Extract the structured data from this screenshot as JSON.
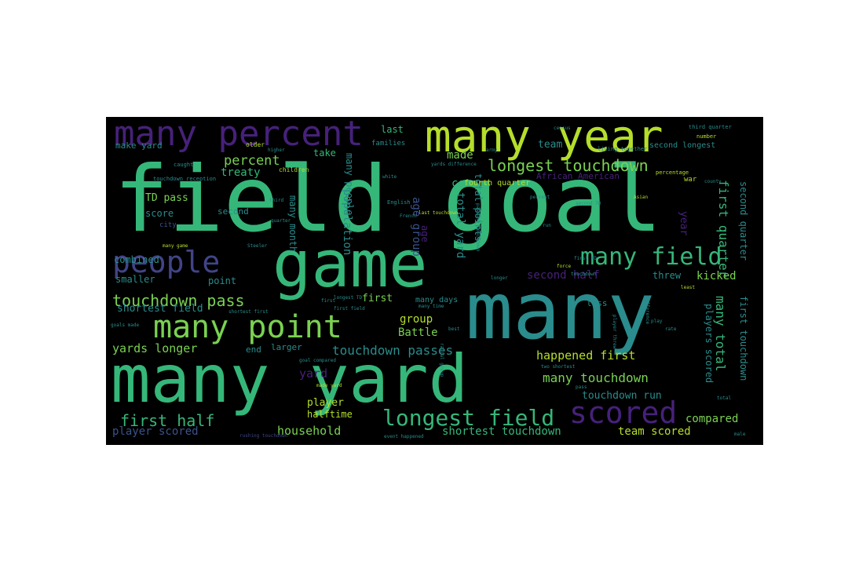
{
  "palette": {
    "purple": "#46217a",
    "indigo": "#414487",
    "blue": "#3b528b",
    "teal": "#2a8c8c",
    "green": "#35b779",
    "lime": "#7ad151",
    "yellow": "#b5de2b",
    "background": "#000000",
    "page": "#ffffff"
  },
  "words": [
    {
      "text": "field goal"
    },
    {
      "text": "many"
    },
    {
      "text": "many yard"
    },
    {
      "text": "game"
    },
    {
      "text": "many year"
    },
    {
      "text": "many percent"
    },
    {
      "text": "many point"
    },
    {
      "text": "people"
    },
    {
      "text": "scored"
    },
    {
      "text": "many field"
    },
    {
      "text": "longest field"
    },
    {
      "text": "longest touchdown"
    },
    {
      "text": "touchdown pass"
    },
    {
      "text": "first half"
    },
    {
      "text": "touchdown passes"
    },
    {
      "text": "many touchdown"
    },
    {
      "text": "happened first"
    },
    {
      "text": "yards longer"
    },
    {
      "text": "percent"
    },
    {
      "text": "household"
    },
    {
      "text": "player scored"
    },
    {
      "text": "shortest touchdown"
    },
    {
      "text": "team scored"
    },
    {
      "text": "compared"
    },
    {
      "text": "touchdown run"
    },
    {
      "text": "second half"
    },
    {
      "text": "kicked"
    },
    {
      "text": "first quarter"
    },
    {
      "text": "second quarter"
    },
    {
      "text": "first touchdown"
    },
    {
      "text": "many total"
    },
    {
      "text": "players scored"
    },
    {
      "text": "population"
    },
    {
      "text": "census"
    },
    {
      "text": "age group"
    },
    {
      "text": "total yard"
    },
    {
      "text": "total points"
    },
    {
      "text": "many month"
    },
    {
      "text": "many people"
    },
    {
      "text": "treaty"
    },
    {
      "text": "made"
    },
    {
      "text": "take"
    },
    {
      "text": "team"
    },
    {
      "text": "last"
    },
    {
      "text": "group"
    },
    {
      "text": "Battle"
    },
    {
      "text": "yard"
    },
    {
      "text": "player"
    },
    {
      "text": "halftime"
    },
    {
      "text": "first"
    },
    {
      "text": "shortest field"
    },
    {
      "text": "score"
    },
    {
      "text": "combined"
    },
    {
      "text": "smaller"
    },
    {
      "text": "point"
    },
    {
      "text": "TD pass"
    },
    {
      "text": "make yard"
    },
    {
      "text": "second"
    },
    {
      "text": "end"
    },
    {
      "text": "larger"
    },
    {
      "text": "threw"
    },
    {
      "text": "less"
    },
    {
      "text": "year"
    },
    {
      "text": "age"
    },
    {
      "text": "many days"
    },
    {
      "text": "African American"
    },
    {
      "text": "war"
    },
    {
      "text": "fourth quarter"
    },
    {
      "text": "second longest"
    },
    {
      "text": "third quarter"
    },
    {
      "text": "city"
    },
    {
      "text": "families"
    },
    {
      "text": "older"
    },
    {
      "text": "children"
    },
    {
      "text": "caught"
    },
    {
      "text": "English"
    },
    {
      "text": "number"
    },
    {
      "text": "percentage"
    },
    {
      "text": "living together"
    },
    {
      "text": "county"
    },
    {
      "text": "touchdown reception"
    },
    {
      "text": "goals made"
    },
    {
      "text": "many game"
    },
    {
      "text": "made yard"
    },
    {
      "text": "goal compared"
    },
    {
      "text": "event happened"
    },
    {
      "text": "rushing touchdown"
    },
    {
      "text": "Steeler"
    },
    {
      "text": "first field"
    },
    {
      "text": "shortest first"
    },
    {
      "text": "longest TD"
    },
    {
      "text": "many time"
    },
    {
      "text": "last touchdown"
    },
    {
      "text": "passing touchdown"
    },
    {
      "text": "yards difference"
    },
    {
      "text": "racial group"
    },
    {
      "text": "force"
    },
    {
      "text": "least"
    },
    {
      "text": "longer"
    },
    {
      "text": "play"
    },
    {
      "text": "player threw"
    },
    {
      "text": "difference"
    },
    {
      "text": "Asian"
    },
    {
      "text": "rate"
    },
    {
      "text": "quarter"
    },
    {
      "text": "third"
    },
    {
      "text": "census"
    },
    {
      "text": "army"
    },
    {
      "text": "white"
    },
    {
      "text": "French"
    },
    {
      "text": "best"
    },
    {
      "text": "two shortest"
    },
    {
      "text": "first TD"
    },
    {
      "text": "pass"
    },
    {
      "text": "male"
    },
    {
      "text": "second TD"
    },
    {
      "text": "touchdown"
    },
    {
      "text": "run"
    },
    {
      "text": "higher"
    },
    {
      "text": "percent"
    },
    {
      "text": "first"
    },
    {
      "text": "total"
    }
  ]
}
